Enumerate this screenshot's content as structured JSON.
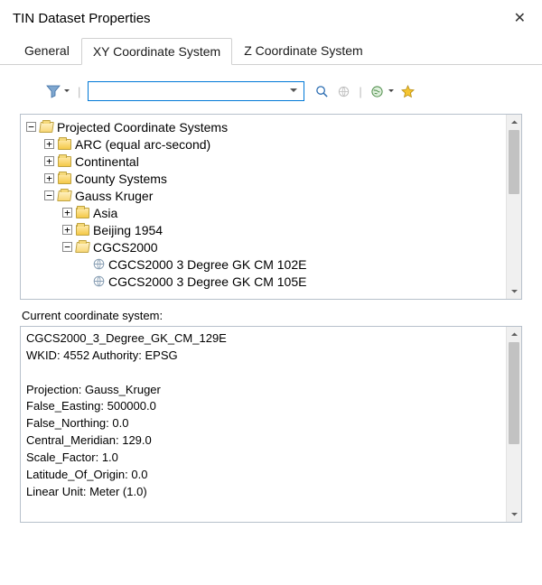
{
  "window": {
    "title": "TIN Dataset Properties"
  },
  "tabs": [
    {
      "label": "General",
      "active": false
    },
    {
      "label": "XY Coordinate System",
      "active": true
    },
    {
      "label": "Z Coordinate System",
      "active": false
    }
  ],
  "search": {
    "value": "",
    "placeholder": ""
  },
  "tree": {
    "root": {
      "label": "Projected Coordinate Systems",
      "expanded": true,
      "children": [
        {
          "label": "ARC (equal arc-second)",
          "expanded": false
        },
        {
          "label": "Continental",
          "expanded": false
        },
        {
          "label": "County Systems",
          "expanded": false
        },
        {
          "label": "Gauss Kruger",
          "expanded": true,
          "children": [
            {
              "label": "Asia",
              "expanded": false
            },
            {
              "label": "Beijing 1954",
              "expanded": false
            },
            {
              "label": "CGCS2000",
              "expanded": true,
              "children": [
                {
                  "label": "CGCS2000 3 Degree GK CM 102E",
                  "type": "crs"
                },
                {
                  "label": "CGCS2000 3 Degree GK CM 105E",
                  "type": "crs"
                }
              ]
            }
          ]
        }
      ]
    }
  },
  "current_label": "Current coordinate system:",
  "details": {
    "name": "CGCS2000_3_Degree_GK_CM_129E",
    "wkid_line": "WKID: 4552 Authority: EPSG",
    "projection": "Projection: Gauss_Kruger",
    "false_easting": "False_Easting: 500000.0",
    "false_northing": "False_Northing: 0.0",
    "central_meridian": "Central_Meridian: 129.0",
    "scale_factor": "Scale_Factor: 1.0",
    "latitude_of_origin": "Latitude_Of_Origin: 0.0",
    "linear_unit": "Linear Unit: Meter (1.0)"
  },
  "colors": {
    "border": "#b7c0cb",
    "active_border": "#0078d7",
    "folder_fill": "#f5c948",
    "scrollbar_thumb": "#c2c2c2"
  },
  "scroll": {
    "tree_thumb_top_pct": 0,
    "tree_thumb_height_pct": 42,
    "detail_thumb_top_pct": 0,
    "detail_thumb_height_pct": 62
  }
}
